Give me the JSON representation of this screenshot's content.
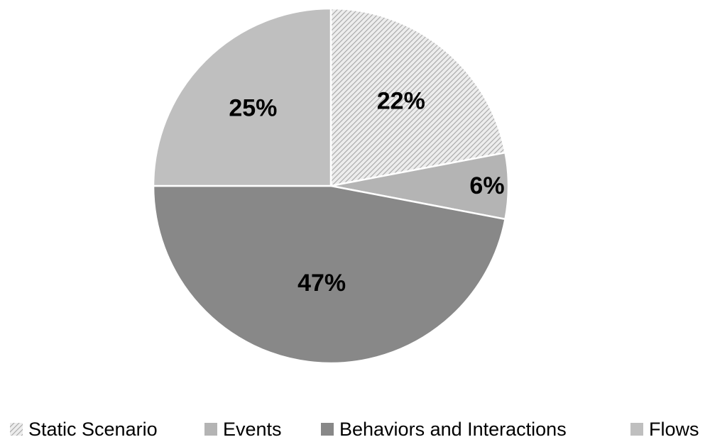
{
  "chart_data": {
    "type": "pie",
    "slices": [
      {
        "label": "Static Scenario",
        "value": 22,
        "display": "22%",
        "color": "#d4d4d4",
        "pattern": "diagonal-hatch"
      },
      {
        "label": "Events",
        "value": 6,
        "display": "6%",
        "color": "#b4b4b4",
        "pattern": "none"
      },
      {
        "label": "Behaviors and Interactions",
        "value": 47,
        "display": "47%",
        "color": "#888888",
        "pattern": "none"
      },
      {
        "label": "Flows",
        "value": 25,
        "display": "25%",
        "color": "#bfbfbf",
        "pattern": "none"
      }
    ],
    "legend_position": "bottom",
    "colors": {
      "hatch_line": "#a6a6a6",
      "slice_border": "#ffffff",
      "text": "#000000"
    }
  }
}
